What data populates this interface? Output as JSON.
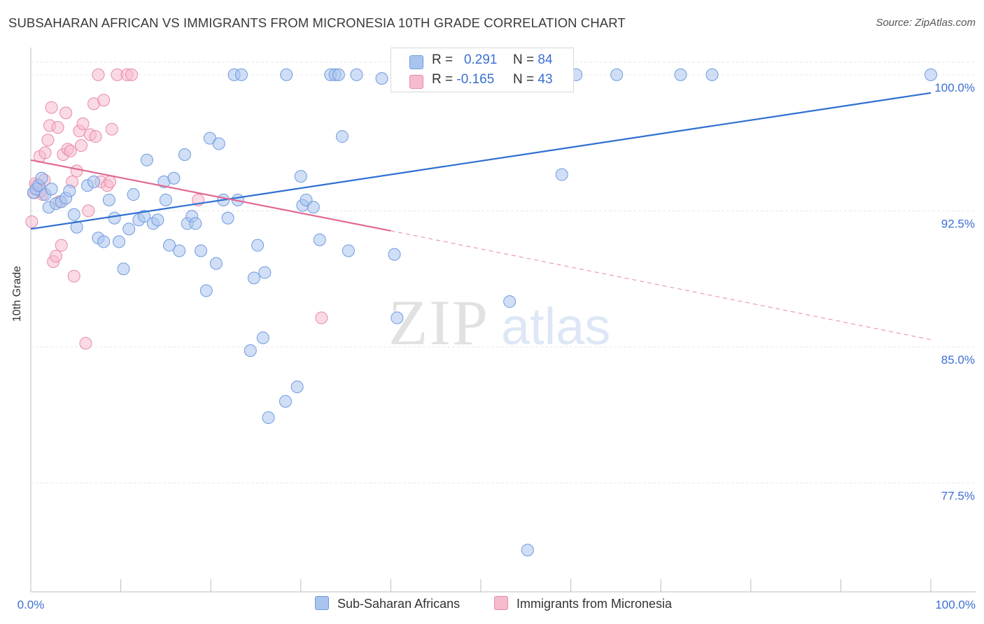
{
  "header": {
    "title": "SUBSAHARAN AFRICAN VS IMMIGRANTS FROM MICRONESIA 10TH GRADE CORRELATION CHART",
    "source": "Source: ZipAtlas.com"
  },
  "watermark": {
    "zip": "ZIP",
    "atlas": "atlas"
  },
  "legend_top": {
    "rows": [
      {
        "r_label": "R =",
        "r_value": "0.291",
        "n_label": "N =",
        "n_value": "84"
      },
      {
        "r_label": "R =",
        "r_value": "-0.165",
        "n_label": "N =",
        "n_value": "43"
      }
    ]
  },
  "legend_bottom": {
    "blue": "Sub-Saharan Africans",
    "pink": "Immigrants from Micronesia"
  },
  "colors": {
    "blue_fill": "#a9c5ef",
    "blue_stroke": "#6f9ae0",
    "blue_line": "#2f6fd1",
    "pink_fill": "#f5bccd",
    "pink_stroke": "#e88aa8",
    "pink_line": "#e06a93",
    "axis_label": "#3b6fd4",
    "grid": "#e6e6e6"
  },
  "chart_data": {
    "type": "scatter",
    "title": "SUBSAHARAN AFRICAN VS IMMIGRANTS FROM MICRONESIA 10TH GRADE CORRELATION CHART",
    "xlabel": "",
    "ylabel": "10th Grade",
    "xlim": [
      0,
      100
    ],
    "ylim": [
      71.5,
      101.5
    ],
    "x_tick_labels": [
      "0.0%",
      "100.0%"
    ],
    "y_ticks": [
      77.5,
      85.0,
      92.5,
      100.0
    ],
    "y_tick_labels": [
      "77.5%",
      "85.0%",
      "92.5%",
      "100.0%"
    ],
    "grid": true,
    "legend": "bottom-center",
    "series": [
      {
        "name": "Sub-Saharan Africans",
        "r": 0.291,
        "n": 84,
        "trend": {
          "x": [
            0,
            100
          ],
          "y": [
            91.5,
            99.0
          ],
          "style": "solid"
        },
        "points": [
          [
            0.3,
            93.5
          ],
          [
            0.6,
            93.7
          ],
          [
            0.9,
            93.9
          ],
          [
            1.2,
            94.3
          ],
          [
            1.6,
            93.4
          ],
          [
            2.0,
            92.7
          ],
          [
            2.3,
            93.7
          ],
          [
            2.8,
            92.9
          ],
          [
            3.4,
            93.0
          ],
          [
            3.9,
            93.2
          ],
          [
            4.3,
            93.6
          ],
          [
            4.8,
            92.3
          ],
          [
            5.1,
            91.6
          ],
          [
            6.3,
            93.9
          ],
          [
            7.0,
            94.1
          ],
          [
            7.5,
            91.0
          ],
          [
            8.1,
            90.8
          ],
          [
            8.7,
            93.1
          ],
          [
            9.3,
            92.1
          ],
          [
            9.8,
            90.8
          ],
          [
            10.3,
            89.3
          ],
          [
            10.9,
            91.5
          ],
          [
            11.4,
            93.4
          ],
          [
            12.0,
            92.0
          ],
          [
            12.6,
            92.2
          ],
          [
            12.9,
            95.3
          ],
          [
            13.6,
            91.8
          ],
          [
            14.1,
            92.0
          ],
          [
            14.8,
            94.1
          ],
          [
            15.0,
            93.1
          ],
          [
            15.4,
            90.6
          ],
          [
            15.9,
            94.3
          ],
          [
            16.5,
            90.3
          ],
          [
            17.1,
            95.6
          ],
          [
            17.4,
            91.8
          ],
          [
            17.9,
            92.2
          ],
          [
            18.3,
            91.8
          ],
          [
            18.9,
            90.3
          ],
          [
            19.5,
            88.1
          ],
          [
            19.9,
            96.5
          ],
          [
            20.6,
            89.6
          ],
          [
            20.9,
            96.2
          ],
          [
            21.4,
            93.1
          ],
          [
            21.9,
            92.1
          ],
          [
            22.6,
            100.0
          ],
          [
            23.0,
            93.1
          ],
          [
            23.4,
            100.0
          ],
          [
            24.4,
            84.8
          ],
          [
            24.8,
            88.8
          ],
          [
            25.2,
            90.6
          ],
          [
            25.8,
            85.5
          ],
          [
            26.0,
            89.1
          ],
          [
            26.4,
            81.1
          ],
          [
            28.3,
            82.0
          ],
          [
            28.4,
            100.0
          ],
          [
            29.6,
            82.8
          ],
          [
            30.0,
            94.4
          ],
          [
            30.2,
            92.8
          ],
          [
            30.6,
            93.1
          ],
          [
            31.4,
            92.7
          ],
          [
            32.1,
            90.9
          ],
          [
            33.3,
            100.0
          ],
          [
            33.8,
            100.0
          ],
          [
            34.2,
            100.0
          ],
          [
            34.6,
            96.6
          ],
          [
            35.3,
            90.3
          ],
          [
            36.2,
            100.0
          ],
          [
            39.0,
            99.8
          ],
          [
            40.4,
            90.1
          ],
          [
            40.7,
            86.6
          ],
          [
            44.9,
            100.0
          ],
          [
            46.5,
            99.6
          ],
          [
            47.4,
            100.0
          ],
          [
            53.2,
            87.5
          ],
          [
            55.2,
            73.8
          ],
          [
            59.0,
            94.5
          ],
          [
            60.6,
            100.0
          ],
          [
            65.1,
            100.0
          ],
          [
            72.2,
            100.0
          ],
          [
            75.7,
            100.0
          ],
          [
            100.0,
            100.0
          ]
        ]
      },
      {
        "name": "Immigrants from Micronesia",
        "r": -0.165,
        "n": 43,
        "trend": {
          "x": [
            0,
            40
          ],
          "y": [
            95.3,
            91.4
          ],
          "style": "solid",
          "extended": {
            "x": [
              40,
              100
            ],
            "y": [
              91.4,
              85.4
            ],
            "style": "dashed"
          }
        },
        "points": [
          [
            0.1,
            91.9
          ],
          [
            0.4,
            93.5
          ],
          [
            0.7,
            93.9
          ],
          [
            1.0,
            95.5
          ],
          [
            1.3,
            93.4
          ],
          [
            1.6,
            95.7
          ],
          [
            1.9,
            96.4
          ],
          [
            2.1,
            97.2
          ],
          [
            2.3,
            98.2
          ],
          [
            2.5,
            89.7
          ],
          [
            2.8,
            90.0
          ],
          [
            3.0,
            97.1
          ],
          [
            3.2,
            93.0
          ],
          [
            3.4,
            90.6
          ],
          [
            3.6,
            95.6
          ],
          [
            3.9,
            97.9
          ],
          [
            4.1,
            95.9
          ],
          [
            4.4,
            95.8
          ],
          [
            4.6,
            94.1
          ],
          [
            4.8,
            88.9
          ],
          [
            5.1,
            94.7
          ],
          [
            5.4,
            96.9
          ],
          [
            5.6,
            96.1
          ],
          [
            5.8,
            97.3
          ],
          [
            6.1,
            85.2
          ],
          [
            6.4,
            92.5
          ],
          [
            6.6,
            96.7
          ],
          [
            7.0,
            98.4
          ],
          [
            7.2,
            96.6
          ],
          [
            7.5,
            100.0
          ],
          [
            7.8,
            94.1
          ],
          [
            8.1,
            98.6
          ],
          [
            8.5,
            93.9
          ],
          [
            8.8,
            94.1
          ],
          [
            9.0,
            97.0
          ],
          [
            9.6,
            100.0
          ],
          [
            10.7,
            100.0
          ],
          [
            11.2,
            100.0
          ],
          [
            18.6,
            93.1
          ],
          [
            32.3,
            86.6
          ],
          [
            0.5,
            94.0
          ],
          [
            1.1,
            93.6
          ],
          [
            1.5,
            94.2
          ]
        ]
      }
    ]
  }
}
